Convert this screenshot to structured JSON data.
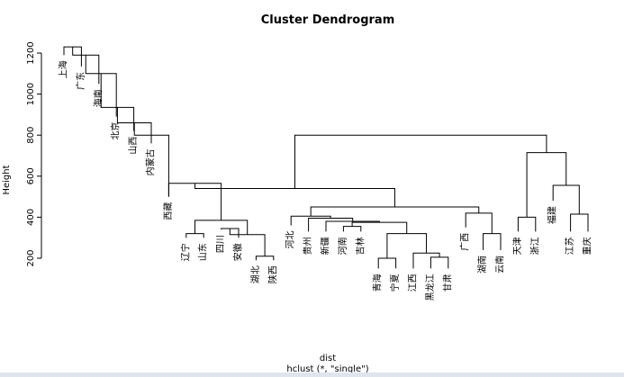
{
  "chart_data": {
    "type": "dendrogram",
    "title": "Cluster Dendrogram",
    "ylabel": "Height",
    "xlabel": "dist",
    "sublabel": "hclust (*, \"single\")",
    "ylim": [
      150,
      1260
    ],
    "yticks": [
      200,
      400,
      600,
      800,
      1000,
      1200
    ],
    "leaves": [
      {
        "label": "上海",
        "x": 1,
        "y": 1190
      },
      {
        "label": "广东",
        "x": 2,
        "y": 1135
      },
      {
        "label": "海南",
        "x": 3,
        "y": 1050
      },
      {
        "label": "北京",
        "x": 4,
        "y": 890
      },
      {
        "label": "山西",
        "x": 5,
        "y": 820
      },
      {
        "label": "内蒙古",
        "x": 6,
        "y": 760
      },
      {
        "label": "西藏",
        "x": 7,
        "y": 500
      },
      {
        "label": "辽宁",
        "x": 8,
        "y": 300
      },
      {
        "label": "山东",
        "x": 9,
        "y": 300
      },
      {
        "label": "四川",
        "x": 10,
        "y": 340
      },
      {
        "label": "安徽",
        "x": 11,
        "y": 300
      },
      {
        "label": "湖北",
        "x": 12,
        "y": 190
      },
      {
        "label": "陕西",
        "x": 13,
        "y": 190
      },
      {
        "label": "河北",
        "x": 14,
        "y": 360
      },
      {
        "label": "贵州",
        "x": 15,
        "y": 330
      },
      {
        "label": "新疆",
        "x": 16,
        "y": 330
      },
      {
        "label": "河南",
        "x": 17,
        "y": 330
      },
      {
        "label": "吉林",
        "x": 18,
        "y": 330
      },
      {
        "label": "青海",
        "x": 19,
        "y": 150
      },
      {
        "label": "宁夏",
        "x": 20,
        "y": 150
      },
      {
        "label": "江西",
        "x": 21,
        "y": 150
      },
      {
        "label": "黑龙江",
        "x": 22,
        "y": 150
      },
      {
        "label": "甘肃",
        "x": 23,
        "y": 150
      },
      {
        "label": "广西",
        "x": 24,
        "y": 350
      },
      {
        "label": "湖南",
        "x": 25,
        "y": 240
      },
      {
        "label": "云南",
        "x": 26,
        "y": 240
      },
      {
        "label": "天津",
        "x": 27,
        "y": 330
      },
      {
        "label": "浙江",
        "x": 28,
        "y": 330
      },
      {
        "label": "福建",
        "x": 29,
        "y": 480
      },
      {
        "label": "江苏",
        "x": 30,
        "y": 330
      },
      {
        "label": "重庆",
        "x": 31,
        "y": 330
      }
    ],
    "merges": [
      {
        "l": 1,
        "r": 2,
        "h": 1230
      },
      {
        "l": 3,
        "r": -1,
        "h": 1190
      },
      {
        "l": 4,
        "r": -2,
        "h": 1100
      },
      {
        "l": 5,
        "r": -3,
        "h": 935
      },
      {
        "l": 6,
        "r": -4,
        "h": 860
      },
      {
        "l": 7,
        "r": -5,
        "h": 800
      },
      {
        "l": 8,
        "r": 9,
        "h": 320
      },
      {
        "l": 10,
        "r": 11,
        "h": 345
      },
      {
        "l": 12,
        "r": 13,
        "h": 210
      },
      {
        "l": -8,
        "r": -9,
        "h": 315
      },
      {
        "l": -7,
        "r": -10,
        "h": 385
      },
      {
        "l": 7,
        "r": -11,
        "h": 565
      },
      {
        "l": 19,
        "r": 20,
        "h": 200
      },
      {
        "l": 22,
        "r": 23,
        "h": 205
      },
      {
        "l": 21,
        "r": -14,
        "h": 225
      },
      {
        "l": -13,
        "r": -15,
        "h": 320
      },
      {
        "l": 17,
        "r": 18,
        "h": 355
      },
      {
        "l": -17,
        "r": -16,
        "h": 375
      },
      {
        "l": 16,
        "r": -18,
        "h": 380
      },
      {
        "l": 15,
        "r": -19,
        "h": 395
      },
      {
        "l": 14,
        "r": -20,
        "h": 405
      },
      {
        "l": 25,
        "r": 26,
        "h": 320
      },
      {
        "l": 24,
        "r": -22,
        "h": 420
      },
      {
        "l": -21,
        "r": -23,
        "h": 450
      },
      {
        "l": -12,
        "r": -24,
        "h": 540
      },
      {
        "l": 27,
        "r": 28,
        "h": 400
      },
      {
        "l": 30,
        "r": 31,
        "h": 415
      },
      {
        "l": 29,
        "r": -27,
        "h": 555
      },
      {
        "l": -26,
        "r": -28,
        "h": 715
      },
      {
        "l": -25,
        "r": -29,
        "h": 800
      }
    ]
  }
}
